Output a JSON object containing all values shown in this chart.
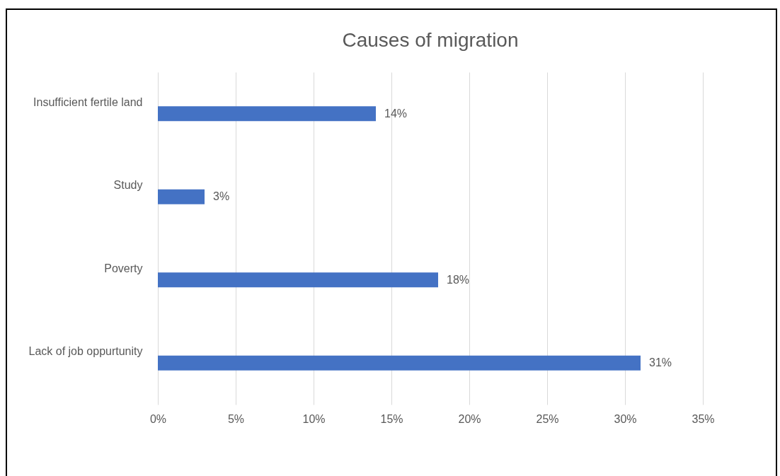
{
  "chart_data": {
    "type": "bar",
    "orientation": "horizontal",
    "title": "Causes of migration",
    "categories": [
      "Insufficient fertile land",
      "Study",
      "Poverty",
      "Lack of job oppurtunity"
    ],
    "values": [
      14,
      3,
      18,
      31
    ],
    "color": "#4472c4",
    "value_labels": [
      "14%",
      "3%",
      "18%",
      "31%"
    ],
    "xlim": [
      0,
      35
    ],
    "xticks": [
      {
        "value": 0,
        "label": "0%"
      },
      {
        "value": 5,
        "label": "5%"
      },
      {
        "value": 10,
        "label": "10%"
      },
      {
        "value": 15,
        "label": "15%"
      },
      {
        "value": 20,
        "label": "20%"
      },
      {
        "value": 25,
        "label": "25%"
      },
      {
        "value": 30,
        "label": "30%"
      },
      {
        "value": 35,
        "label": "35%"
      }
    ],
    "grid": "x"
  }
}
